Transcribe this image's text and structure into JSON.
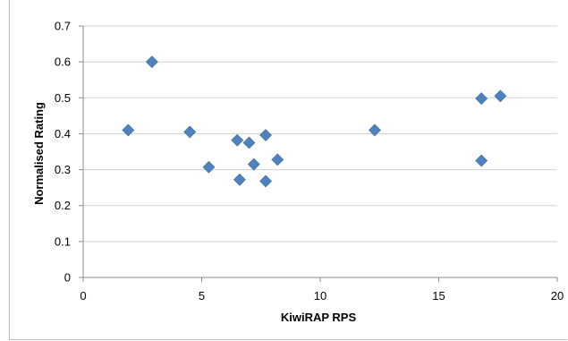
{
  "chart_data": {
    "type": "scatter",
    "title": "",
    "xlabel": "KiwiRAP RPS",
    "ylabel": "Normalised Rating",
    "xlim": [
      0,
      20
    ],
    "ylim": [
      0,
      0.7
    ],
    "xticks": [
      "0",
      "5",
      "10",
      "15",
      "20"
    ],
    "yticks": [
      "0",
      "0.1",
      "0.2",
      "0.3",
      "0.4",
      "0.5",
      "0.6",
      "0.7"
    ],
    "grid": "horizontal",
    "legend": "none",
    "marker_color": "#4f81bd",
    "points": [
      {
        "x": 1.9,
        "y": 0.41
      },
      {
        "x": 2.9,
        "y": 0.6
      },
      {
        "x": 4.5,
        "y": 0.405
      },
      {
        "x": 5.3,
        "y": 0.307
      },
      {
        "x": 6.5,
        "y": 0.382
      },
      {
        "x": 6.6,
        "y": 0.272
      },
      {
        "x": 7.0,
        "y": 0.375
      },
      {
        "x": 7.2,
        "y": 0.315
      },
      {
        "x": 7.7,
        "y": 0.396
      },
      {
        "x": 7.7,
        "y": 0.268
      },
      {
        "x": 8.2,
        "y": 0.328
      },
      {
        "x": 12.3,
        "y": 0.41
      },
      {
        "x": 16.8,
        "y": 0.498
      },
      {
        "x": 16.8,
        "y": 0.325
      },
      {
        "x": 17.6,
        "y": 0.505
      }
    ]
  }
}
